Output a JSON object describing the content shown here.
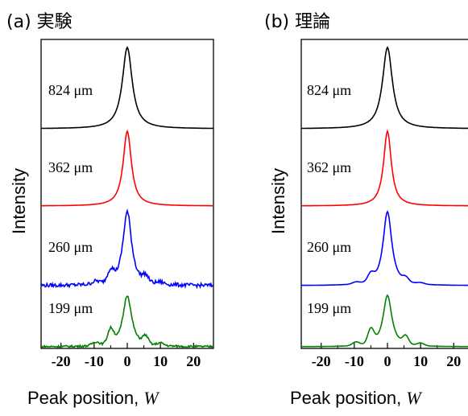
{
  "chart_data": [
    {
      "type": "line",
      "title": "(a) 実験",
      "xlabel": "Peak position, ",
      "xlabel_var": "W",
      "ylabel": "Intensity",
      "xlim": [
        -26,
        26
      ],
      "xticks": [
        -20,
        -10,
        0,
        10,
        20
      ],
      "xtick_labels": [
        "-20",
        "-10",
        "0",
        "10",
        "20"
      ],
      "series": [
        {
          "name": "824 μm",
          "color": "#000000",
          "width": 1.8,
          "noise": 0.0,
          "sidebumps": 0.0
        },
        {
          "name": "362 μm",
          "color": "#ff0000",
          "width": 1.5,
          "noise": 0.0,
          "sidebumps": 0.0
        },
        {
          "name": "260 μm",
          "color": "#0000ff",
          "width": 1.6,
          "noise": 0.05,
          "sidebumps": 0.15
        },
        {
          "name": "199 μm",
          "color": "#008000",
          "width": 1.6,
          "noise": 0.04,
          "sidebumps": 0.28
        }
      ]
    },
    {
      "type": "line",
      "title": "(b) 理論",
      "xlabel": "Peak position, ",
      "xlabel_var": "W",
      "ylabel": "Intensity",
      "xlim": [
        -26,
        26
      ],
      "xticks": [
        -20,
        -10,
        0,
        10,
        20
      ],
      "xtick_labels": [
        "-20",
        "-10",
        "0",
        "10",
        "20"
      ],
      "series": [
        {
          "name": "824 μm",
          "color": "#000000",
          "width": 1.8,
          "noise": 0.0,
          "sidebumps": 0.0
        },
        {
          "name": "362 μm",
          "color": "#ff0000",
          "width": 1.4,
          "noise": 0.0,
          "sidebumps": 0.0
        },
        {
          "name": "260 μm",
          "color": "#0000ff",
          "width": 1.6,
          "noise": 0.0,
          "sidebumps": 0.1
        },
        {
          "name": "199 μm",
          "color": "#008000",
          "width": 1.6,
          "noise": 0.0,
          "sidebumps": 0.28
        }
      ]
    }
  ]
}
